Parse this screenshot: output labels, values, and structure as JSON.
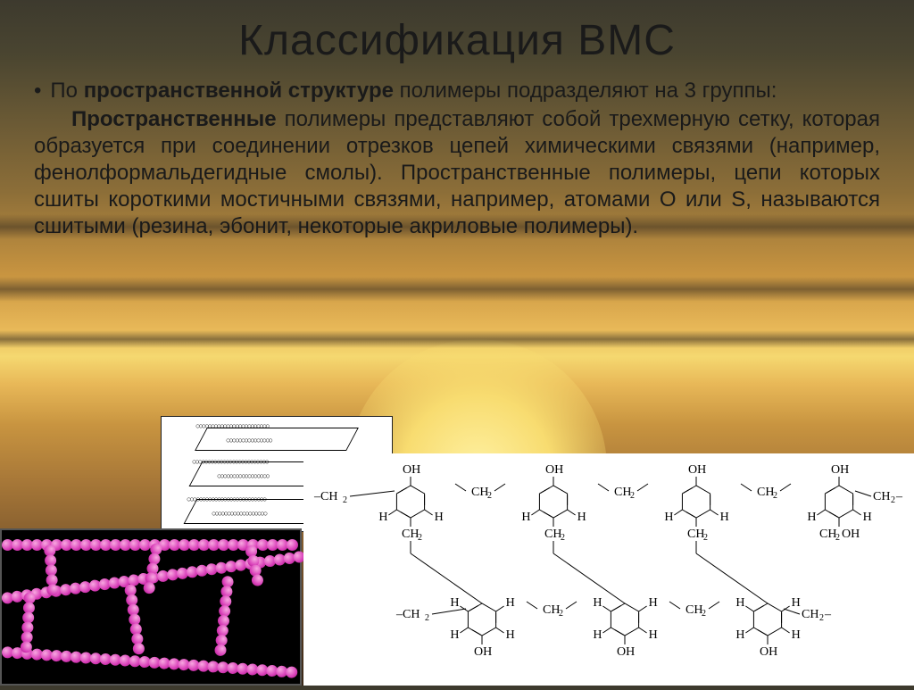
{
  "title": "Классификация ВМС",
  "intro_lead": "По",
  "intro_bold": "пространственной структуре",
  "intro_tail": "полимеры подразделяют на 3 группы:",
  "body_bold": "Пространственные",
  "body_text": "полимеры представляют собой трехмерную сетку, которая образуется при соединении отрезков цепей химическими связями (например, фенолформальдегидные смолы). Пространственные полимеры, цепи которых сшиты короткими мостичными связями, например, атомами О или S, называются сшитыми (резина, эбонит, некоторые акриловые полимеры).",
  "chem_labels": {
    "OH": "OH",
    "CH2": "CH",
    "CH2_sub": "2",
    "H": "H",
    "CH2OH": "CH",
    "CH2OH_tail": "OH"
  },
  "colors": {
    "text": "#1a1a1a",
    "bead_light": "#f8a8e0",
    "bead_mid": "#d83db8",
    "bead_dark": "#9c1a7a",
    "panel_white": "#ffffff",
    "panel_black": "#000000"
  }
}
